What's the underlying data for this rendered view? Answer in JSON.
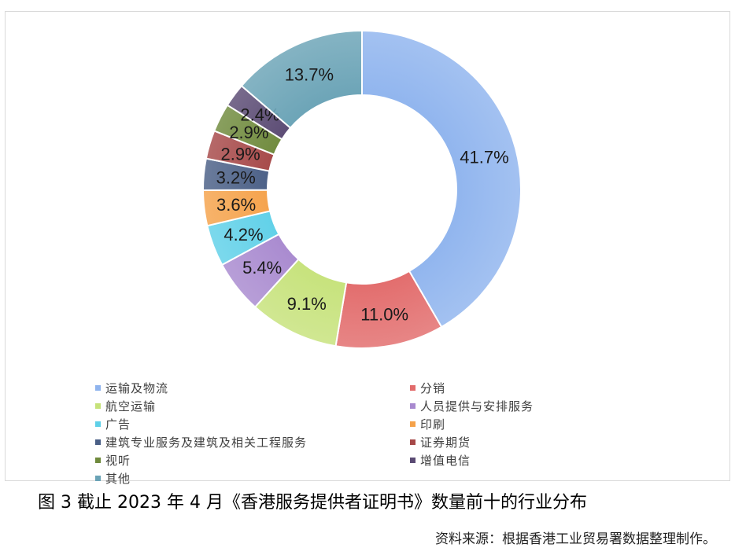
{
  "chart_data": {
    "type": "pie",
    "donut": true,
    "title": "",
    "categories": [
      "运输及物流",
      "分销",
      "航空运输",
      "人员提供与安排服务",
      "广告",
      "印刷",
      "建筑专业服务及建筑及相关工程服务",
      "证券期货",
      "视听",
      "增值电信",
      "其他"
    ],
    "values": [
      41.7,
      11.0,
      9.1,
      5.4,
      4.2,
      3.6,
      3.2,
      2.9,
      2.9,
      2.4,
      13.7
    ],
    "labels": [
      "41.7%",
      "11.0%",
      "9.1%",
      "5.4%",
      "4.2%",
      "3.6%",
      "3.2%",
      "2.9%",
      "2.9%",
      "2.4%",
      "13.7%"
    ],
    "colors": [
      "#8fb4ee",
      "#e26b6b",
      "#c6e27a",
      "#a889cf",
      "#5fd0e8",
      "#f5a24a",
      "#4a5f86",
      "#a64848",
      "#6f8a3c",
      "#5a4a73",
      "#6aa3b6"
    ],
    "legend_position": "bottom"
  },
  "caption": "图 3    截止 2023 年 4 月《香港服务提供者证明书》数量前十的行业分布",
  "source": "资料来源：根据香港工业贸易署数据整理制作。"
}
